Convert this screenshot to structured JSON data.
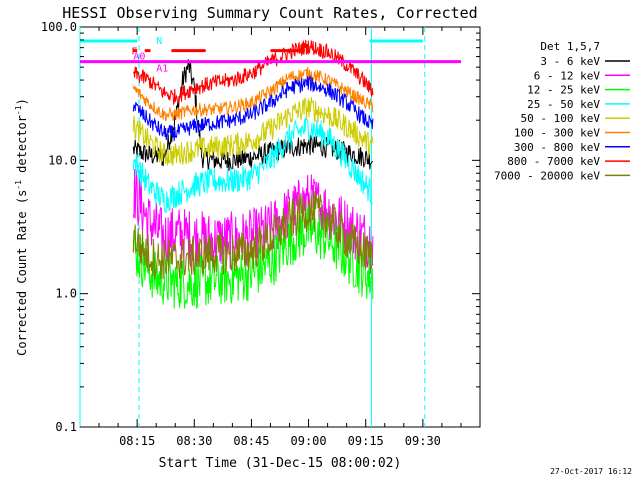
{
  "chart_data": {
    "type": "line",
    "title": "HESSI Observing Summary Count Rates, Corrected",
    "xlabel": "Start Time (31-Dec-15 08:00:02)",
    "ylabel_main": "Corrected Count Rate (s",
    "ylabel_sup1": "-1",
    "ylabel_mid": " detector",
    "ylabel_sup2": "-1",
    "ylabel_end": ")",
    "y_scale": "log",
    "ylim": [
      0.1,
      100
    ],
    "xlim_minutes": [
      0,
      105
    ],
    "x_ticks": [
      {
        "minutes": 15,
        "label": "08:15"
      },
      {
        "minutes": 30,
        "label": "08:30"
      },
      {
        "minutes": 45,
        "label": "08:45"
      },
      {
        "minutes": 60,
        "label": "09:00"
      },
      {
        "minutes": 75,
        "label": "09:15"
      },
      {
        "minutes": 90,
        "label": "09:30"
      }
    ],
    "y_ticks": [
      {
        "value": 100,
        "label": "100.0"
      },
      {
        "value": 10,
        "label": "10.0"
      },
      {
        "value": 1,
        "label": "1.0"
      },
      {
        "value": 0.1,
        "label": "0.1"
      }
    ],
    "legend_title": "Det 1,5,7",
    "legend_placement": "right",
    "series": [
      {
        "name": "3 - 6 keV",
        "color": "#000000",
        "x": [
          14,
          18,
          22,
          25,
          27,
          28.5,
          30,
          32,
          35,
          40,
          45,
          50,
          55,
          60,
          65,
          70,
          75,
          77
        ],
        "y": [
          12,
          11,
          10.5,
          20,
          40,
          52,
          35,
          10.5,
          10,
          10,
          10.5,
          11.5,
          12.5,
          13,
          12.5,
          11.5,
          10.5,
          10
        ]
      },
      {
        "name": "6 - 12 keV",
        "color": "#ff00ff",
        "x": [
          14,
          18,
          22,
          25,
          30,
          35,
          40,
          45,
          50,
          55,
          60,
          65,
          70,
          75,
          77
        ],
        "y": [
          6,
          3.5,
          2.6,
          2.8,
          2.6,
          2.5,
          2.5,
          2.6,
          3,
          4,
          5,
          4.2,
          3.2,
          2.6,
          2.5
        ]
      },
      {
        "name": "12 - 25 keV",
        "color": "#00ff00",
        "x": [
          14,
          16,
          20,
          25,
          30,
          35,
          40,
          45,
          50,
          55,
          60,
          65,
          70,
          75,
          77
        ],
        "y": [
          2.2,
          1.8,
          1.3,
          1.2,
          1.2,
          1.25,
          1.3,
          1.4,
          1.7,
          2.5,
          3,
          2.6,
          1.9,
          1.4,
          1.3
        ]
      },
      {
        "name": "25 - 50 keV",
        "color": "#00ffff",
        "x": [
          14,
          18,
          22,
          25,
          30,
          35,
          40,
          45,
          50,
          55,
          60,
          65,
          70,
          75,
          77
        ],
        "y": [
          10,
          6.5,
          5,
          5.5,
          6.5,
          7,
          7,
          7.5,
          10,
          15,
          18,
          15,
          10,
          6.5,
          5.5
        ]
      },
      {
        "name": "50 - 100 keV",
        "color": "#cccc00",
        "x": [
          14,
          18,
          22,
          25,
          30,
          35,
          40,
          45,
          50,
          55,
          60,
          65,
          70,
          75,
          77
        ],
        "y": [
          18,
          14,
          11,
          11,
          12,
          12.5,
          13,
          14,
          17,
          22,
          25,
          22,
          18,
          14,
          12.5
        ]
      },
      {
        "name": "100 - 300 keV",
        "color": "#ff8000",
        "x": [
          14,
          18,
          22,
          25,
          30,
          35,
          40,
          45,
          50,
          55,
          60,
          65,
          70,
          75,
          77
        ],
        "y": [
          35,
          27,
          22,
          22,
          24,
          24,
          25,
          27,
          33,
          42,
          45,
          40,
          33,
          27,
          25
        ]
      },
      {
        "name": "300 - 800 keV",
        "color": "#0000ff",
        "x": [
          14,
          18,
          22,
          25,
          30,
          35,
          40,
          45,
          50,
          55,
          60,
          65,
          70,
          75,
          77
        ],
        "y": [
          26,
          20,
          16,
          16,
          18,
          19,
          20,
          22,
          27,
          35,
          38,
          34,
          27,
          20,
          18
        ]
      },
      {
        "name": "800 - 7000 keV",
        "color": "#ff0000",
        "x": [
          14,
          18,
          22,
          25,
          30,
          35,
          40,
          45,
          50,
          55,
          60,
          65,
          70,
          75,
          77
        ],
        "y": [
          45,
          40,
          32,
          30,
          35,
          38,
          40,
          45,
          55,
          65,
          72,
          65,
          52,
          38,
          32
        ]
      },
      {
        "name": "7000 - 20000 keV",
        "color": "#808000",
        "x": [
          14,
          16,
          20,
          25,
          30,
          35,
          40,
          45,
          50,
          55,
          60,
          65,
          70,
          75,
          77
        ],
        "y": [
          2.8,
          2.2,
          1.8,
          1.8,
          1.9,
          2,
          2,
          2.1,
          2.6,
          3.5,
          4.3,
          3.7,
          2.6,
          2,
          1.9
        ]
      }
    ],
    "attenuator": {
      "color": "#ff00ff",
      "value": 55,
      "label_A0": "A0",
      "label_A1": "A1"
    },
    "flare_marker": {
      "color": "#ff0000",
      "label": "F"
    },
    "night_marker": {
      "color": "#00ffff",
      "label": "N",
      "night_spans_minutes": [
        [
          0,
          15
        ],
        [
          76,
          90
        ]
      ]
    },
    "vertical_lines_minutes": [
      {
        "minutes": 0,
        "style": "solid"
      },
      {
        "minutes": 15.5,
        "style": "dashed"
      },
      {
        "minutes": 76.5,
        "style": "solid"
      },
      {
        "minutes": 90.5,
        "style": "dashed"
      }
    ]
  },
  "footer": {
    "timestamp": "27-Oct-2017 16:12"
  }
}
